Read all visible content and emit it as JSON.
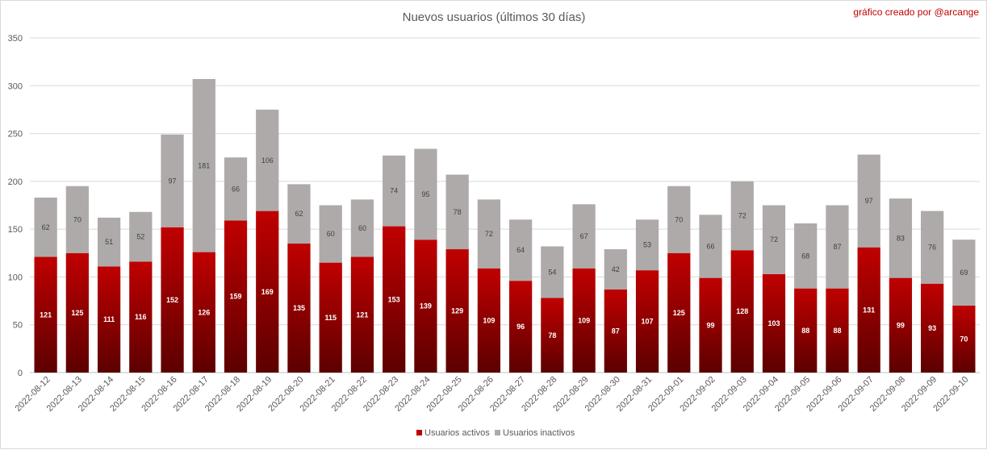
{
  "chart_data": {
    "type": "bar",
    "stacked": true,
    "title": "Nuevos usuarios (últimos 30 días)",
    "credit": "gráfico creado por @arcange",
    "categories": [
      "2022-08-12",
      "2022-08-13",
      "2022-08-14",
      "2022-08-15",
      "2022-08-16",
      "2022-08-17",
      "2022-08-18",
      "2022-08-19",
      "2022-08-20",
      "2022-08-21",
      "2022-08-22",
      "2022-08-23",
      "2022-08-24",
      "2022-08-25",
      "2022-08-26",
      "2022-08-27",
      "2022-08-28",
      "2022-08-29",
      "2022-08-30",
      "2022-08-31",
      "2022-09-01",
      "2022-09-02",
      "2022-09-03",
      "2022-09-04",
      "2022-09-05",
      "2022-09-06",
      "2022-09-07",
      "2022-09-08",
      "2022-09-09",
      "2022-09-10"
    ],
    "series": [
      {
        "name": "Usuarios activos",
        "color": "#c00000",
        "values": [
          121,
          125,
          111,
          116,
          152,
          126,
          159,
          169,
          135,
          115,
          121,
          153,
          139,
          129,
          109,
          96,
          78,
          109,
          87,
          107,
          125,
          99,
          128,
          103,
          88,
          88,
          131,
          99,
          93,
          70
        ]
      },
      {
        "name": "Usuarios inactivos",
        "color": "#aeaaaa",
        "values": [
          62,
          70,
          51,
          52,
          97,
          181,
          66,
          106,
          62,
          60,
          60,
          74,
          95,
          78,
          72,
          64,
          54,
          67,
          42,
          53,
          70,
          66,
          72,
          72,
          68,
          87,
          97,
          83,
          76,
          69
        ]
      }
    ],
    "yticks": [
      0,
      50,
      100,
      150,
      200,
      250,
      300,
      350
    ],
    "ylim": [
      0,
      350
    ],
    "grid": true,
    "legend_position": "bottom"
  }
}
